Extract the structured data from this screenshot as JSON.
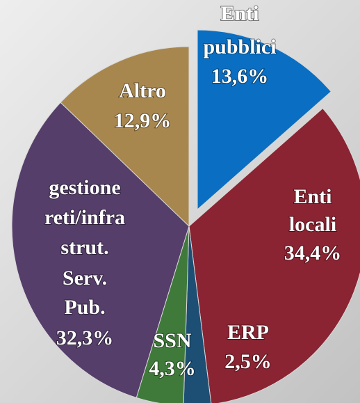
{
  "chart_data": {
    "type": "pie",
    "labels": [
      [
        "Enti",
        "pubblici"
      ],
      [
        "Enti",
        "locali"
      ],
      [
        "ERP"
      ],
      [
        "SSN"
      ],
      [
        "gestione",
        "reti/infra",
        "strut.",
        "Serv.",
        "Pub."
      ],
      [
        "Altro"
      ]
    ],
    "values": [
      13.6,
      34.4,
      2.5,
      4.3,
      32.3,
      12.9
    ],
    "value_labels": [
      "13,6%",
      "34,4%",
      "2,5%",
      "4,3%",
      "32,3%",
      "12,9%"
    ],
    "colors": [
      "#0a6fc2",
      "#8a2432",
      "#1d4f74",
      "#3f7a3a",
      "#553e6a",
      "#a8874f"
    ]
  }
}
